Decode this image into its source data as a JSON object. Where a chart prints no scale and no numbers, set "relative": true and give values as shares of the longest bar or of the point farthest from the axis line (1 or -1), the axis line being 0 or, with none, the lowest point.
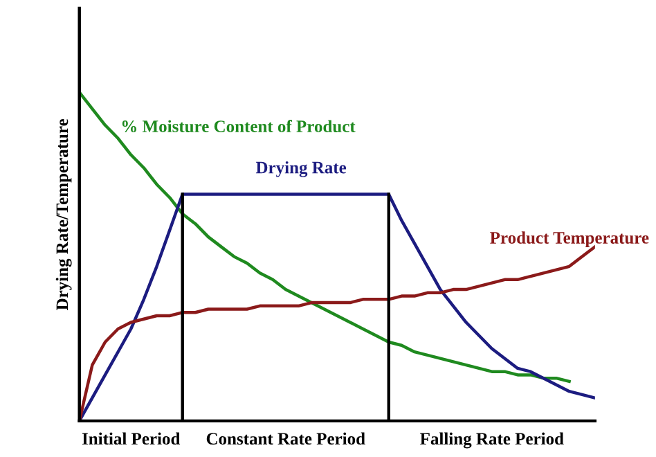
{
  "chart_data": {
    "type": "line",
    "relative": true,
    "ylabel": "Drying Rate/Temperature",
    "legend": false,
    "marker": "none",
    "line_style": "solid",
    "categories": [
      null,
      null,
      null,
      null,
      null,
      null,
      null,
      null,
      null,
      null,
      null,
      null,
      null,
      null,
      null,
      null,
      null,
      null,
      null,
      null,
      null,
      null,
      null,
      null,
      null,
      null,
      null,
      null,
      null,
      null,
      null,
      null,
      null,
      null,
      null,
      null,
      null,
      null,
      null,
      null,
      null
    ],
    "series": [
      {
        "name": "% Moisture Content of Product",
        "color": "#1f8a1f",
        "values": [
          1.0,
          0.95,
          0.9,
          0.86,
          0.81,
          0.77,
          0.72,
          0.68,
          0.63,
          0.6,
          0.56,
          0.53,
          0.5,
          0.48,
          0.45,
          0.43,
          0.4,
          0.38,
          0.36,
          0.34,
          0.32,
          0.3,
          0.28,
          0.26,
          0.24,
          0.23,
          0.21,
          0.2,
          0.19,
          0.18,
          0.17,
          0.16,
          0.15,
          0.15,
          0.14,
          0.14,
          0.13,
          0.13,
          0.12,
          null,
          null
        ]
      },
      {
        "name": "Drying Rate",
        "color": "#1c1c80",
        "values": [
          0,
          0.07,
          0.14,
          0.21,
          0.28,
          0.37,
          0.47,
          0.58,
          0.69,
          0.69,
          0.69,
          0.69,
          0.69,
          0.69,
          0.69,
          0.69,
          0.69,
          0.69,
          0.69,
          0.69,
          0.69,
          0.69,
          0.69,
          0.69,
          0.69,
          0.61,
          0.54,
          0.47,
          0.4,
          0.35,
          0.3,
          0.26,
          0.22,
          0.19,
          0.16,
          0.15,
          0.13,
          0.11,
          0.09,
          0.08,
          0.07
        ]
      },
      {
        "name": "Product Temperature",
        "color": "#8b1a1a",
        "values": [
          0,
          0.17,
          0.24,
          0.28,
          0.3,
          0.31,
          0.32,
          0.32,
          0.33,
          0.33,
          0.34,
          0.34,
          0.34,
          0.34,
          0.35,
          0.35,
          0.35,
          0.35,
          0.36,
          0.36,
          0.36,
          0.36,
          0.37,
          0.37,
          0.37,
          0.38,
          0.38,
          0.39,
          0.39,
          0.4,
          0.4,
          0.41,
          0.42,
          0.43,
          0.43,
          0.44,
          0.45,
          0.46,
          0.47,
          0.5,
          0.53
        ]
      }
    ],
    "annotations": [
      "Initial Period",
      "Constant Rate Period",
      "Falling Rate Period"
    ]
  }
}
